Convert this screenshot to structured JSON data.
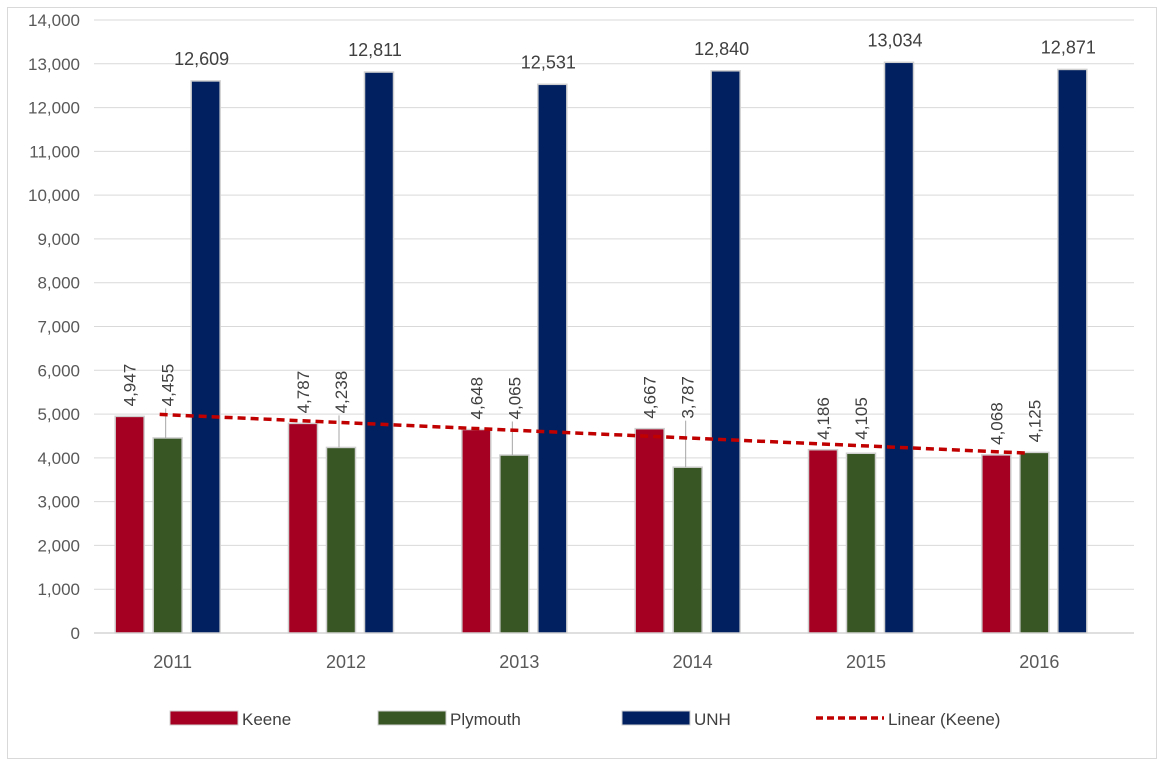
{
  "chart_data": {
    "type": "bar",
    "categories": [
      "2011",
      "2012",
      "2013",
      "2014",
      "2015",
      "2016"
    ],
    "series": [
      {
        "name": "Keene",
        "values": [
          4947,
          4787,
          4648,
          4667,
          4186,
          4068
        ],
        "color": "#a50021"
      },
      {
        "name": "Plymouth",
        "values": [
          4455,
          4238,
          4065,
          3787,
          4105,
          4125
        ],
        "color": "#375623"
      },
      {
        "name": "UNH",
        "values": [
          12609,
          12811,
          12531,
          12840,
          13034,
          12871
        ],
        "color": "#002060"
      }
    ],
    "data_labels": {
      "Keene": [
        "4,947",
        "4,787",
        "4,648",
        "4,667",
        "4,186",
        "4,068"
      ],
      "Plymouth": [
        "4,455",
        "4,238",
        "4,065",
        "3,787",
        "4,105",
        "4,125"
      ],
      "UNH": [
        "12,609",
        "12,811",
        "12,531",
        "12,840",
        "13,034",
        "12,871"
      ]
    },
    "trendline": {
      "name": "Linear (Keene)",
      "of_series": "Keene",
      "color": "#c00000",
      "style": "dashed"
    },
    "ylim": [
      0,
      14000
    ],
    "ytick_values": [
      0,
      1000,
      2000,
      3000,
      4000,
      5000,
      6000,
      7000,
      8000,
      9000,
      10000,
      11000,
      12000,
      13000,
      14000
    ],
    "ytick_labels": [
      "0",
      "1,000",
      "2,000",
      "3,000",
      "4,000",
      "5,000",
      "6,000",
      "7,000",
      "8,000",
      "9,000",
      "10,000",
      "11,000",
      "12,000",
      "13,000",
      "14,000"
    ],
    "grid": true,
    "legend": "bottom",
    "title": "",
    "xlabel": "",
    "ylabel": ""
  }
}
